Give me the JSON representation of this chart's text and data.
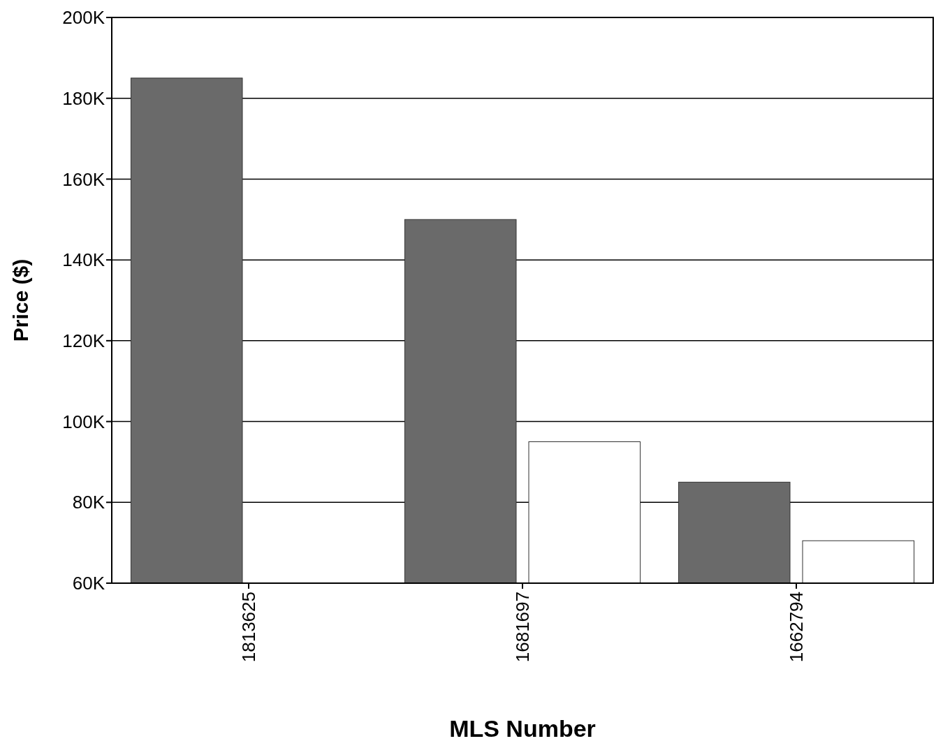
{
  "chart_data": {
    "type": "bar",
    "xlabel": "MLS Number",
    "ylabel": "Price ($)",
    "categories": [
      "1813625",
      "1681697",
      "1662794"
    ],
    "series": [
      {
        "color": "#6a6a6a",
        "values": [
          185000,
          150000,
          85000
        ]
      },
      {
        "color": "#ffffff",
        "values": [
          null,
          95000,
          70500
        ]
      }
    ],
    "ylim": [
      60000,
      200000
    ],
    "yticks": [
      {
        "value": 60000,
        "label": "60K"
      },
      {
        "value": 80000,
        "label": "80K"
      },
      {
        "value": 100000,
        "label": "100K"
      },
      {
        "value": 120000,
        "label": "120K"
      },
      {
        "value": 140000,
        "label": "140K"
      },
      {
        "value": 160000,
        "label": "160K"
      },
      {
        "value": 180000,
        "label": "180K"
      },
      {
        "value": 200000,
        "label": "200K"
      }
    ],
    "grid": "y"
  }
}
